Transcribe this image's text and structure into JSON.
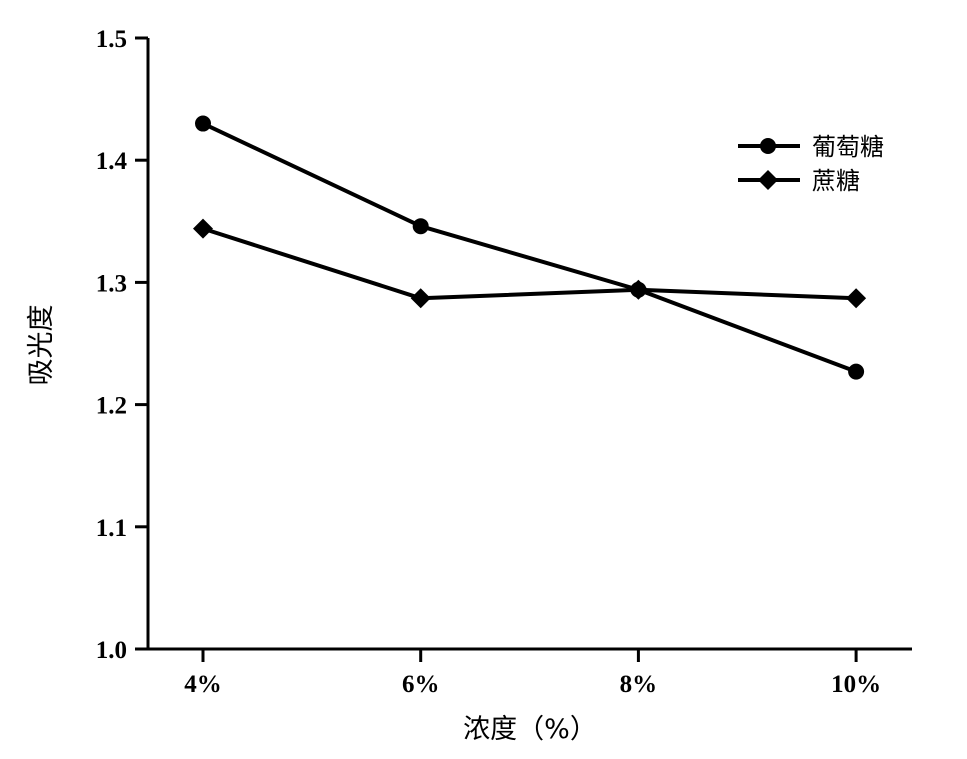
{
  "chart_data": {
    "type": "line",
    "categories": [
      "4%",
      "6%",
      "8%",
      "10%"
    ],
    "series": [
      {
        "name": "葡萄糖",
        "marker": "circle",
        "values": [
          1.43,
          1.346,
          1.294,
          1.227
        ]
      },
      {
        "name": "蔗糖",
        "marker": "diamond",
        "values": [
          1.344,
          1.287,
          1.294,
          1.287
        ]
      }
    ],
    "xlabel": "浓度（%）",
    "ylabel": "吸光度",
    "ylim": [
      1.0,
      1.5
    ],
    "yticks": [
      "1.0",
      "1.1",
      "1.2",
      "1.3",
      "1.4",
      "1.5"
    ],
    "grid": false,
    "legend_position": "top-right",
    "colors": {
      "line": "#000000",
      "background": "#ffffff"
    }
  }
}
